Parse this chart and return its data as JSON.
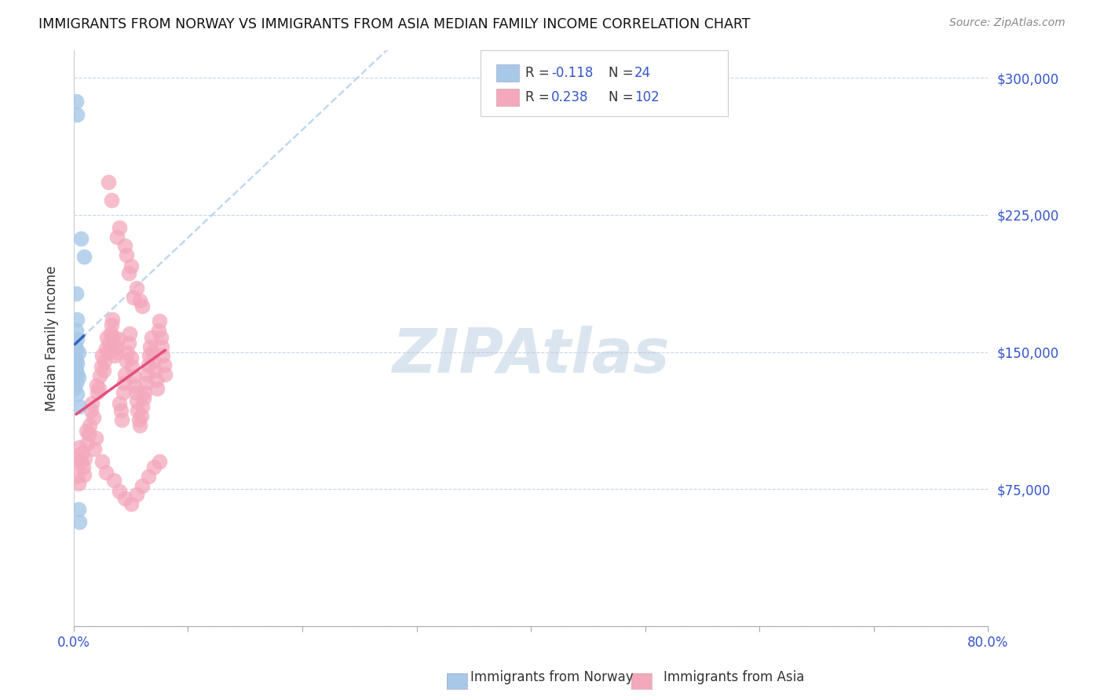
{
  "title": "IMMIGRANTS FROM NORWAY VS IMMIGRANTS FROM ASIA MEDIAN FAMILY INCOME CORRELATION CHART",
  "source": "Source: ZipAtlas.com",
  "ylabel": "Median Family Income",
  "yticks": [
    0,
    75000,
    150000,
    225000,
    300000
  ],
  "ytick_labels": [
    "",
    "$75,000",
    "$150,000",
    "$225,000",
    "$300,000"
  ],
  "xmin": 0.0,
  "xmax": 0.8,
  "ymin": 0,
  "ymax": 315000,
  "norway_R": -0.118,
  "norway_N": 24,
  "asia_R": 0.238,
  "asia_N": 102,
  "norway_color": "#a8c8e8",
  "asia_color": "#f4a8bc",
  "norway_line_color": "#3366bb",
  "asia_line_color": "#e05080",
  "norway_scatter": [
    [
      0.002,
      287000
    ],
    [
      0.003,
      280000
    ],
    [
      0.006,
      212000
    ],
    [
      0.009,
      202000
    ],
    [
      0.002,
      182000
    ],
    [
      0.003,
      168000
    ],
    [
      0.002,
      162000
    ],
    [
      0.003,
      157000
    ],
    [
      0.001,
      154000
    ],
    [
      0.002,
      152000
    ],
    [
      0.004,
      150000
    ],
    [
      0.001,
      148000
    ],
    [
      0.002,
      146000
    ],
    [
      0.003,
      144000
    ],
    [
      0.001,
      142000
    ],
    [
      0.002,
      140000
    ],
    [
      0.003,
      138000
    ],
    [
      0.004,
      136000
    ],
    [
      0.002,
      133000
    ],
    [
      0.001,
      130000
    ],
    [
      0.003,
      127000
    ],
    [
      0.005,
      120000
    ],
    [
      0.004,
      64000
    ],
    [
      0.005,
      57000
    ]
  ],
  "asia_scatter": [
    [
      0.002,
      90000
    ],
    [
      0.003,
      82000
    ],
    [
      0.004,
      78000
    ],
    [
      0.005,
      98000
    ],
    [
      0.006,
      90000
    ],
    [
      0.007,
      95000
    ],
    [
      0.008,
      87000
    ],
    [
      0.009,
      83000
    ],
    [
      0.01,
      92000
    ],
    [
      0.011,
      107000
    ],
    [
      0.012,
      100000
    ],
    [
      0.013,
      105000
    ],
    [
      0.014,
      110000
    ],
    [
      0.015,
      118000
    ],
    [
      0.016,
      122000
    ],
    [
      0.017,
      114000
    ],
    [
      0.018,
      97000
    ],
    [
      0.019,
      103000
    ],
    [
      0.02,
      132000
    ],
    [
      0.021,
      128000
    ],
    [
      0.022,
      130000
    ],
    [
      0.023,
      137000
    ],
    [
      0.024,
      142000
    ],
    [
      0.025,
      148000
    ],
    [
      0.026,
      140000
    ],
    [
      0.027,
      145000
    ],
    [
      0.028,
      152000
    ],
    [
      0.029,
      158000
    ],
    [
      0.03,
      150000
    ],
    [
      0.031,
      155000
    ],
    [
      0.032,
      160000
    ],
    [
      0.033,
      165000
    ],
    [
      0.034,
      168000
    ],
    [
      0.035,
      158000
    ],
    [
      0.036,
      148000
    ],
    [
      0.037,
      152000
    ],
    [
      0.038,
      150000
    ],
    [
      0.039,
      157000
    ],
    [
      0.04,
      122000
    ],
    [
      0.041,
      118000
    ],
    [
      0.042,
      113000
    ],
    [
      0.043,
      128000
    ],
    [
      0.044,
      133000
    ],
    [
      0.045,
      138000
    ],
    [
      0.046,
      145000
    ],
    [
      0.047,
      150000
    ],
    [
      0.048,
      155000
    ],
    [
      0.049,
      160000
    ],
    [
      0.05,
      147000
    ],
    [
      0.051,
      142000
    ],
    [
      0.052,
      137000
    ],
    [
      0.053,
      132000
    ],
    [
      0.054,
      128000
    ],
    [
      0.055,
      123000
    ],
    [
      0.056,
      118000
    ],
    [
      0.057,
      113000
    ],
    [
      0.058,
      110000
    ],
    [
      0.059,
      115000
    ],
    [
      0.06,
      120000
    ],
    [
      0.061,
      125000
    ],
    [
      0.062,
      128000
    ],
    [
      0.063,
      133000
    ],
    [
      0.064,
      138000
    ],
    [
      0.065,
      143000
    ],
    [
      0.066,
      148000
    ],
    [
      0.067,
      153000
    ],
    [
      0.068,
      158000
    ],
    [
      0.069,
      150000
    ],
    [
      0.07,
      145000
    ],
    [
      0.071,
      140000
    ],
    [
      0.072,
      135000
    ],
    [
      0.073,
      130000
    ],
    [
      0.074,
      162000
    ],
    [
      0.075,
      167000
    ],
    [
      0.076,
      158000
    ],
    [
      0.077,
      153000
    ],
    [
      0.078,
      148000
    ],
    [
      0.079,
      143000
    ],
    [
      0.08,
      138000
    ],
    [
      0.03,
      243000
    ],
    [
      0.033,
      233000
    ],
    [
      0.038,
      213000
    ],
    [
      0.04,
      218000
    ],
    [
      0.045,
      208000
    ],
    [
      0.046,
      203000
    ],
    [
      0.05,
      197000
    ],
    [
      0.048,
      193000
    ],
    [
      0.055,
      185000
    ],
    [
      0.052,
      180000
    ],
    [
      0.058,
      178000
    ],
    [
      0.06,
      175000
    ],
    [
      0.025,
      90000
    ],
    [
      0.028,
      84000
    ],
    [
      0.035,
      80000
    ],
    [
      0.04,
      74000
    ],
    [
      0.045,
      70000
    ],
    [
      0.05,
      67000
    ],
    [
      0.055,
      72000
    ],
    [
      0.06,
      77000
    ],
    [
      0.065,
      82000
    ],
    [
      0.07,
      87000
    ],
    [
      0.075,
      90000
    ]
  ],
  "background_color": "#ffffff",
  "grid_color": "#c8d4e8",
  "watermark": "ZIPAtlas",
  "watermark_color": "#b8cce0",
  "legend_label_color": "#333333",
  "legend_value_color": "#3355cc"
}
